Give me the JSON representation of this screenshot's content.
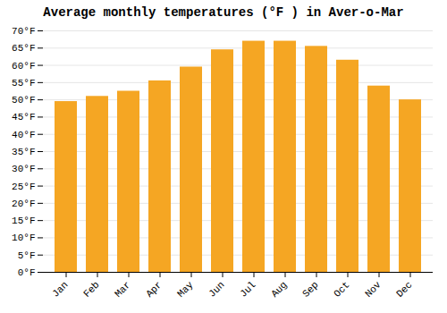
{
  "chart_data": {
    "type": "bar",
    "title": "Average monthly temperatures (°F ) in Aver-o-Mar",
    "categories": [
      "Jan",
      "Feb",
      "Mar",
      "Apr",
      "May",
      "Jun",
      "Jul",
      "Aug",
      "Sep",
      "Oct",
      "Nov",
      "Dec"
    ],
    "values": [
      49.5,
      51.0,
      52.5,
      55.5,
      59.5,
      64.5,
      67.0,
      67.0,
      65.5,
      61.5,
      54.0,
      50.0
    ],
    "color": "#F5A623",
    "ylim": [
      0,
      70
    ],
    "yticks": [
      {
        "value": 0,
        "label": "0°F"
      },
      {
        "value": 5,
        "label": "5°F"
      },
      {
        "value": 10,
        "label": "10°F"
      },
      {
        "value": 15,
        "label": "15°F"
      },
      {
        "value": 20,
        "label": "20°F"
      },
      {
        "value": 25,
        "label": "25°F"
      },
      {
        "value": 30,
        "label": "30°F"
      },
      {
        "value": 35,
        "label": "35°F"
      },
      {
        "value": 40,
        "label": "40°F"
      },
      {
        "value": 45,
        "label": "45°F"
      },
      {
        "value": 50,
        "label": "50°F"
      },
      {
        "value": 55,
        "label": "55°F"
      },
      {
        "value": 60,
        "label": "60°F"
      },
      {
        "value": 65,
        "label": "65°F"
      },
      {
        "value": 70,
        "label": "70°F"
      }
    ],
    "grid": true
  }
}
